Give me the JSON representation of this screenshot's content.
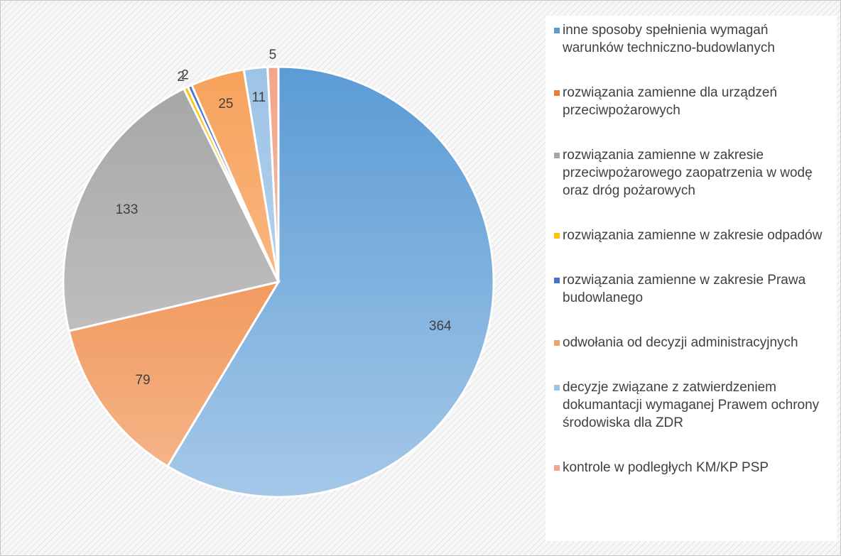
{
  "chart_data": {
    "type": "pie",
    "categories": [
      "inne sposoby spełnienia wymagań warunków techniczno-budowlanych",
      "rozwiązania zamienne dla urządzeń przeciwpożarowych",
      "rozwiązania zamienne w zakresie przeciwpożarowego zaopatrzenia w wodę oraz dróg pożarowych",
      "rozwiązania zamienne w zakresie odpadów",
      "rozwiązania zamienne w zakresie Prawa budowlanego",
      "odwołania od decyzji administracyjnych",
      "decyzje związane z zatwierdzeniem dokumantacji wymaganej Prawem ochrony środowiska dla ZDR",
      "kontrole w podległych KM/KP PSP"
    ],
    "values": [
      364,
      79,
      133,
      2,
      2,
      25,
      11,
      5
    ],
    "colors": [
      "#5b9bd5",
      "#ed7d31",
      "#a5a5a5",
      "#ffc000",
      "#4472c4",
      "#f7a25c",
      "#9dc3e6",
      "#f2a58b"
    ],
    "legend": "right"
  }
}
